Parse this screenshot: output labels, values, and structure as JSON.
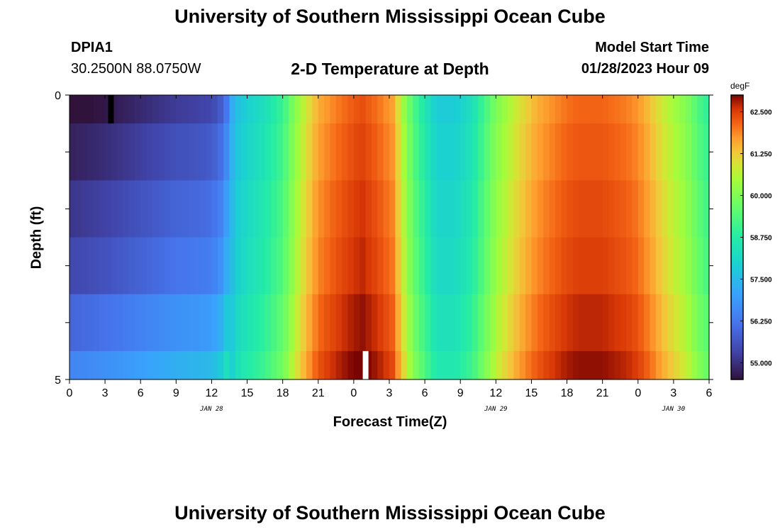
{
  "page": {
    "title_top": "University of Southern Mississippi Ocean Cube",
    "title_bottom": "University of Southern Mississippi Ocean Cube"
  },
  "header": {
    "station_id": "DPIA1",
    "coordinates": "30.2500N  88.0750W",
    "plot_title": "2-D Temperature at Depth",
    "model_start_label": "Model Start Time",
    "model_start_value": "01/28/2023 Hour 09"
  },
  "chart_data": {
    "type": "heatmap",
    "title": "2-D Temperature at Depth",
    "xlabel": "Forecast Time(Z)",
    "ylabel": "Depth (ft)",
    "x_range_hours": [
      0,
      54
    ],
    "y_range_ft": [
      0,
      5
    ],
    "x_ticks": [
      {
        "h": 0,
        "label": "0"
      },
      {
        "h": 3,
        "label": "3"
      },
      {
        "h": 6,
        "label": "6"
      },
      {
        "h": 9,
        "label": "9"
      },
      {
        "h": 12,
        "label": "12"
      },
      {
        "h": 15,
        "label": "15"
      },
      {
        "h": 18,
        "label": "18"
      },
      {
        "h": 21,
        "label": "21"
      },
      {
        "h": 24,
        "label": "0"
      },
      {
        "h": 27,
        "label": "3"
      },
      {
        "h": 30,
        "label": "6"
      },
      {
        "h": 33,
        "label": "9"
      },
      {
        "h": 36,
        "label": "12"
      },
      {
        "h": 39,
        "label": "15"
      },
      {
        "h": 42,
        "label": "18"
      },
      {
        "h": 45,
        "label": "21"
      },
      {
        "h": 48,
        "label": "0"
      },
      {
        "h": 51,
        "label": "3"
      },
      {
        "h": 54,
        "label": "6"
      }
    ],
    "date_labels": [
      {
        "h": 12,
        "label": "JAN 28"
      },
      {
        "h": 36,
        "label": "JAN 29"
      },
      {
        "h": 51,
        "label": "JAN 30"
      }
    ],
    "y_ticks": [
      {
        "depth": 0,
        "label": "0"
      },
      {
        "depth": 5,
        "label": "5"
      }
    ],
    "colorbar": {
      "unit": "degF",
      "vmin": 54.5,
      "vmax": 63.0,
      "ticks": [
        "62.500",
        "61.250",
        "60.000",
        "58.750",
        "57.500",
        "56.250",
        "55.000"
      ],
      "tick_values": [
        62.5,
        61.25,
        60.0,
        58.75,
        57.5,
        56.25,
        55.0
      ]
    },
    "layers_ft": [
      0,
      0.5,
      1.5,
      2.5,
      3.5,
      4.5,
      5.0
    ],
    "time_profile": {
      "hours": [
        0,
        3,
        6,
        9,
        11,
        12,
        12.7,
        13.5,
        14,
        15,
        16.5,
        18,
        19,
        20,
        21,
        22.5,
        24,
        24.7,
        26,
        27.3,
        28,
        29,
        30,
        31,
        32.5,
        34,
        35,
        36,
        37,
        38,
        39,
        40,
        41,
        42,
        43,
        45,
        47,
        48,
        49,
        50,
        51,
        52,
        53,
        54
      ],
      "base": [
        55.1,
        55.3,
        55.6,
        55.9,
        56.0,
        56.1,
        56.4,
        57.2,
        57.8,
        58.2,
        58.6,
        59.3,
        60.3,
        61.1,
        61.8,
        62.2,
        62.5,
        62.6,
        62.3,
        61.9,
        60.9,
        59.6,
        58.8,
        58.1,
        58.1,
        58.6,
        59.4,
        60.2,
        60.7,
        61.2,
        61.6,
        61.9,
        62.1,
        62.3,
        62.4,
        62.4,
        62.2,
        62.0,
        61.6,
        61.1,
        60.7,
        60.3,
        59.6,
        59.1
      ]
    },
    "layer_offsets": [
      -0.5,
      -0.25,
      0,
      0.2,
      0.6,
      1.0
    ],
    "observations": [
      {
        "h": 3.5,
        "depth_from": 0,
        "depth_to": 0.5,
        "marker": "black"
      },
      {
        "h": 25,
        "depth_from": 4.5,
        "depth_to": 5.0,
        "marker": "white"
      }
    ]
  }
}
